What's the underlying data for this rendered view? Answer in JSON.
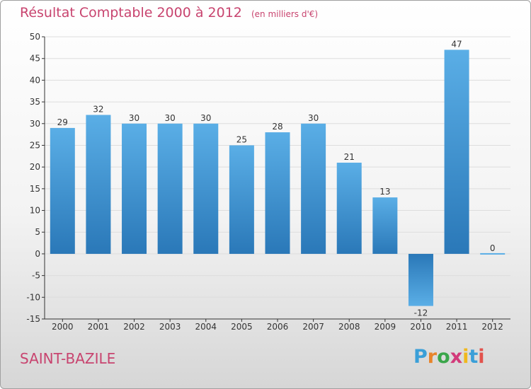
{
  "header": {
    "title": "Résultat Comptable 2000 à 2012",
    "unit": "(en milliers d'€)"
  },
  "footer": {
    "city": "SAINT-BAZILE",
    "logo_letters": [
      "P",
      "r",
      "o",
      "x",
      "i",
      "t",
      "i"
    ],
    "logo_colors": [
      "#3a9fd8",
      "#e8842a",
      "#3aa64a",
      "#d23a7a",
      "#f0b81e",
      "#3a9fd8",
      "#e2524c"
    ]
  },
  "colors": {
    "accent": "#c8446f",
    "bar_light": "#5aaee6",
    "bar_dark": "#2a78b8",
    "grid": "#dddddd",
    "axis": "#333333"
  },
  "chart_data": {
    "type": "bar",
    "categories": [
      "2000",
      "2001",
      "2002",
      "2003",
      "2004",
      "2005",
      "2006",
      "2007",
      "2008",
      "2009",
      "2010",
      "2011",
      "2012"
    ],
    "values": [
      29,
      32,
      30,
      30,
      30,
      25,
      28,
      30,
      21,
      13,
      -12,
      47,
      0
    ],
    "value_labels": [
      "29",
      "32",
      "30",
      "30",
      "30",
      "25",
      "28",
      "30",
      "21",
      "13",
      "-12",
      "47",
      "0"
    ],
    "title": "Résultat Comptable 2000 à 2012",
    "xlabel": "",
    "ylabel": "",
    "ylim": [
      -15,
      50
    ],
    "yticks": [
      -15,
      -10,
      -5,
      0,
      5,
      10,
      15,
      20,
      25,
      30,
      35,
      40,
      45,
      50
    ],
    "grid": true
  }
}
